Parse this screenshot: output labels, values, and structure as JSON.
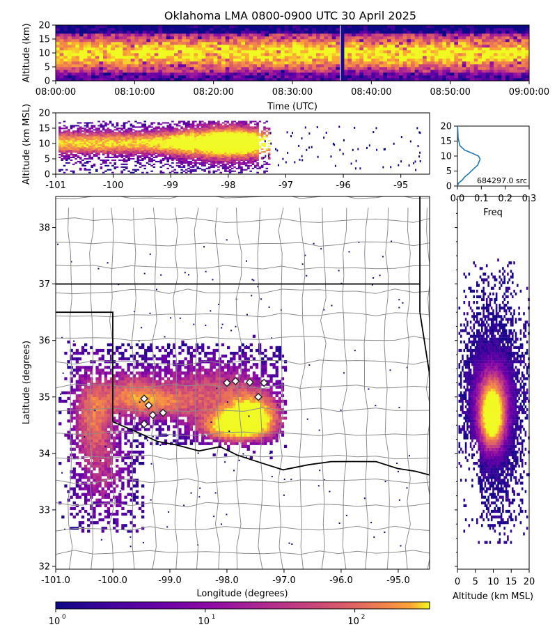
{
  "title": "Oklahoma LMA 0800-0900 UTC 30 April 2025",
  "colors": {
    "bg_low": "#0d0887",
    "bg_high": "#f0f921",
    "states": "#000000",
    "counties": "#8c8c8c",
    "freq_line": "#1f77b4"
  },
  "colormap": "plasma",
  "chart_data": [
    {
      "name": "time-height",
      "type": "heatmap",
      "ylabel": "Altitude (km)",
      "xlabel": "Time (UTC)",
      "xticks": [
        "08:00:00",
        "08:10:00",
        "08:20:00",
        "08:30:00",
        "08:40:00",
        "08:50:00",
        "09:00:00"
      ],
      "yticks": [
        "0",
        "5",
        "10",
        "15",
        "20"
      ],
      "ylim": [
        0,
        20
      ],
      "gap_minute": 36.3
    },
    {
      "name": "lon-alt",
      "type": "heatmap",
      "ylabel": "Altitude (km MSL)",
      "xticks": [
        "-101",
        "-100",
        "-99",
        "-98",
        "-97",
        "-96",
        "-95"
      ],
      "yticks": [
        "0",
        "5",
        "10",
        "15",
        "20"
      ],
      "xlim": [
        -101,
        -94.5
      ],
      "ylim": [
        0,
        20
      ]
    },
    {
      "name": "altitude-histogram",
      "type": "line",
      "xlabel": "Freq",
      "xticks": [
        "0.0",
        "0.1",
        "0.2",
        "0.3"
      ],
      "yticks": [
        "0",
        "5",
        "10",
        "15",
        "20"
      ],
      "xlim": [
        0,
        0.3
      ],
      "ylim": [
        0,
        20
      ],
      "annotation": "684297.0 src",
      "x": [
        0.0,
        0.005,
        0.02,
        0.03,
        0.045,
        0.065,
        0.085,
        0.095,
        0.088,
        0.06,
        0.03,
        0.01,
        0.003,
        0.001
      ],
      "y": [
        0,
        1,
        2,
        3,
        4,
        5.5,
        7,
        9,
        10,
        11,
        12,
        13.5,
        16,
        20
      ]
    },
    {
      "name": "plan-view",
      "type": "heatmap",
      "xlabel": "Longitude (degrees)",
      "ylabel": "Latitude (degrees)",
      "xticks": [
        "-101.0",
        "-100.0",
        "-99.0",
        "-98.0",
        "-97.0",
        "-96.0",
        "-95.0"
      ],
      "yticks": [
        "32",
        "33",
        "34",
        "35",
        "36",
        "37",
        "38"
      ],
      "xlim": [
        -101.0,
        -94.45
      ],
      "ylim": [
        31.95,
        38.55
      ],
      "stations": [
        {
          "lon": -99.45,
          "lat": 34.97
        },
        {
          "lon": -99.37,
          "lat": 34.85
        },
        {
          "lon": -99.3,
          "lat": 34.68
        },
        {
          "lon": -99.45,
          "lat": 34.52
        },
        {
          "lon": -99.12,
          "lat": 34.72
        },
        {
          "lon": -98.0,
          "lat": 35.25
        },
        {
          "lon": -97.85,
          "lat": 35.28
        },
        {
          "lon": -97.6,
          "lat": 35.26
        },
        {
          "lon": -97.35,
          "lat": 35.25
        },
        {
          "lon": -97.45,
          "lat": 35.0
        }
      ]
    },
    {
      "name": "alt-lat",
      "type": "heatmap",
      "xlabel": "Altitude (km MSL)",
      "xticks": [
        "0",
        "5",
        "10",
        "15",
        "20"
      ],
      "xlim": [
        0,
        20
      ]
    },
    {
      "name": "colorbar",
      "type": "heatmap",
      "ticks": [
        "10",
        "10",
        "10"
      ],
      "exponents": [
        "0",
        "1",
        "2"
      ]
    }
  ]
}
